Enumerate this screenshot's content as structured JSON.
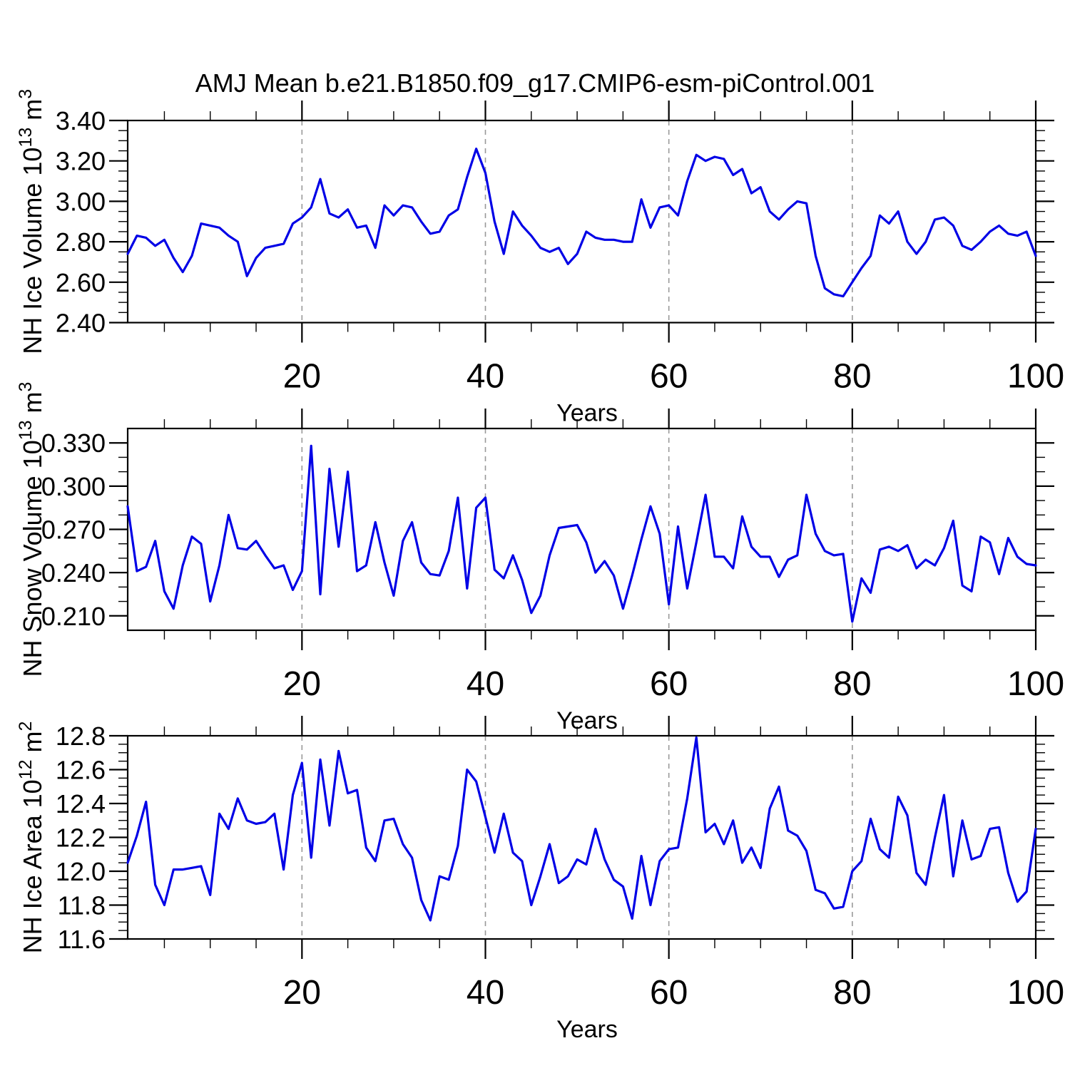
{
  "title": "AMJ Mean b.e21.B1850.f09_g17.CMIP6-esm-piControl.001",
  "xlabel": "Years",
  "colors": {
    "line": "#0000E6",
    "grid": "#999999",
    "axis": "#000000"
  },
  "chart_data": [
    {
      "type": "line",
      "name": "nh-ice-volume",
      "ylabel": "NH Ice Volume 10^13 m^3",
      "ylabel_rich": [
        {
          "t": "NH Ice Volume 10"
        },
        {
          "t": "13",
          "sup": true
        },
        {
          "t": " m"
        },
        {
          "t": "3",
          "sup": true
        }
      ],
      "xlabel": "Years",
      "x_start": 1,
      "x_end": 100,
      "xticks": [
        20,
        40,
        60,
        80,
        100
      ],
      "grid_years": [
        20,
        40,
        60,
        80
      ],
      "xminor_step": 5,
      "ylim": [
        2.4,
        3.4
      ],
      "yticks": {
        "start": 2.4,
        "step": 0.2,
        "count": 6,
        "decimals": 2,
        "minor_step": 0.05
      },
      "values": [
        2.74,
        2.83,
        2.82,
        2.78,
        2.81,
        2.72,
        2.65,
        2.73,
        2.89,
        2.88,
        2.87,
        2.83,
        2.8,
        2.63,
        2.72,
        2.77,
        2.78,
        2.79,
        2.89,
        2.92,
        2.97,
        3.11,
        2.94,
        2.92,
        2.96,
        2.87,
        2.88,
        2.77,
        2.98,
        2.93,
        2.98,
        2.97,
        2.9,
        2.84,
        2.85,
        2.93,
        2.96,
        3.12,
        3.26,
        3.14,
        2.9,
        2.74,
        2.95,
        2.88,
        2.83,
        2.77,
        2.75,
        2.77,
        2.69,
        2.74,
        2.85,
        2.82,
        2.81,
        2.81,
        2.8,
        2.8,
        3.01,
        2.87,
        2.97,
        2.98,
        2.93,
        3.1,
        3.23,
        3.2,
        3.22,
        3.21,
        3.13,
        3.16,
        3.04,
        3.07,
        2.95,
        2.91,
        2.96,
        3.0,
        2.99,
        2.73,
        2.57,
        2.54,
        2.53,
        2.6,
        2.67,
        2.73,
        2.93,
        2.89,
        2.95,
        2.8,
        2.74,
        2.8,
        2.91,
        2.92,
        2.88,
        2.78,
        2.76,
        2.8,
        2.85,
        2.88,
        2.84,
        2.83,
        2.85,
        2.73
      ]
    },
    {
      "type": "line",
      "name": "nh-snow-volume",
      "ylabel": "NH Snow Volume 10^13 m^3",
      "ylabel_rich": [
        {
          "t": "NH Snow Volume 10"
        },
        {
          "t": "13",
          "sup": true
        },
        {
          "t": " m"
        },
        {
          "t": "3",
          "sup": true
        }
      ],
      "xlabel": "Years",
      "x_start": 1,
      "x_end": 100,
      "xticks": [
        20,
        40,
        60,
        80,
        100
      ],
      "grid_years": [
        20,
        40,
        60,
        80
      ],
      "xminor_step": 5,
      "ylim": [
        0.2,
        0.34
      ],
      "yticks": {
        "start": 0.21,
        "step": 0.03,
        "count": 5,
        "decimals": 3,
        "minor_step": 0.01
      },
      "values": [
        0.286,
        0.241,
        0.244,
        0.262,
        0.227,
        0.215,
        0.245,
        0.265,
        0.26,
        0.22,
        0.245,
        0.28,
        0.257,
        0.256,
        0.262,
        0.252,
        0.243,
        0.245,
        0.228,
        0.241,
        0.328,
        0.225,
        0.312,
        0.258,
        0.31,
        0.241,
        0.245,
        0.275,
        0.247,
        0.224,
        0.262,
        0.275,
        0.247,
        0.239,
        0.238,
        0.255,
        0.292,
        0.229,
        0.285,
        0.292,
        0.242,
        0.236,
        0.252,
        0.235,
        0.212,
        0.224,
        0.252,
        0.271,
        0.272,
        0.273,
        0.261,
        0.24,
        0.248,
        0.238,
        0.215,
        0.238,
        0.263,
        0.286,
        0.267,
        0.218,
        0.272,
        0.229,
        0.261,
        0.294,
        0.251,
        0.251,
        0.243,
        0.279,
        0.258,
        0.251,
        0.251,
        0.237,
        0.249,
        0.252,
        0.294,
        0.267,
        0.255,
        0.252,
        0.253,
        0.206,
        0.236,
        0.226,
        0.256,
        0.258,
        0.255,
        0.259,
        0.243,
        0.249,
        0.245,
        0.257,
        0.276,
        0.231,
        0.227,
        0.265,
        0.261,
        0.239,
        0.264,
        0.251,
        0.246,
        0.245
      ]
    },
    {
      "type": "line",
      "name": "nh-ice-area",
      "ylabel": "NH Ice Area 10^12 m^2",
      "ylabel_rich": [
        {
          "t": "NH Ice Area 10"
        },
        {
          "t": "12",
          "sup": true
        },
        {
          "t": " m"
        },
        {
          "t": "2",
          "sup": true
        }
      ],
      "xlabel": "Years",
      "x_start": 1,
      "x_end": 100,
      "xticks": [
        20,
        40,
        60,
        80,
        100
      ],
      "grid_years": [
        20,
        40,
        60,
        80
      ],
      "xminor_step": 5,
      "ylim": [
        11.6,
        12.8
      ],
      "yticks": {
        "start": 11.6,
        "step": 0.2,
        "count": 7,
        "decimals": 1,
        "minor_step": 0.05
      },
      "values": [
        12.05,
        12.21,
        12.41,
        11.92,
        11.8,
        12.01,
        12.01,
        12.02,
        12.03,
        11.86,
        12.34,
        12.25,
        12.43,
        12.3,
        12.28,
        12.29,
        12.34,
        12.01,
        12.45,
        12.64,
        12.08,
        12.66,
        12.27,
        12.71,
        12.46,
        12.48,
        12.14,
        12.06,
        12.3,
        12.31,
        12.16,
        12.08,
        11.83,
        11.71,
        11.97,
        11.95,
        12.15,
        12.6,
        12.53,
        12.32,
        12.11,
        12.34,
        12.11,
        12.06,
        11.8,
        11.97,
        12.16,
        11.93,
        11.97,
        12.07,
        12.04,
        12.25,
        12.07,
        11.95,
        11.91,
        11.72,
        12.09,
        11.8,
        12.06,
        12.13,
        12.14,
        12.43,
        12.79,
        12.23,
        12.28,
        12.16,
        12.3,
        12.05,
        12.14,
        12.02,
        12.37,
        12.5,
        12.24,
        12.21,
        12.12,
        11.89,
        11.87,
        11.78,
        11.79,
        12.0,
        12.06,
        12.31,
        12.13,
        12.08,
        12.44,
        12.33,
        11.99,
        11.92,
        12.2,
        12.45,
        11.97,
        12.3,
        12.07,
        12.09,
        12.25,
        12.26,
        11.99,
        11.82,
        11.88,
        12.25
      ]
    }
  ]
}
